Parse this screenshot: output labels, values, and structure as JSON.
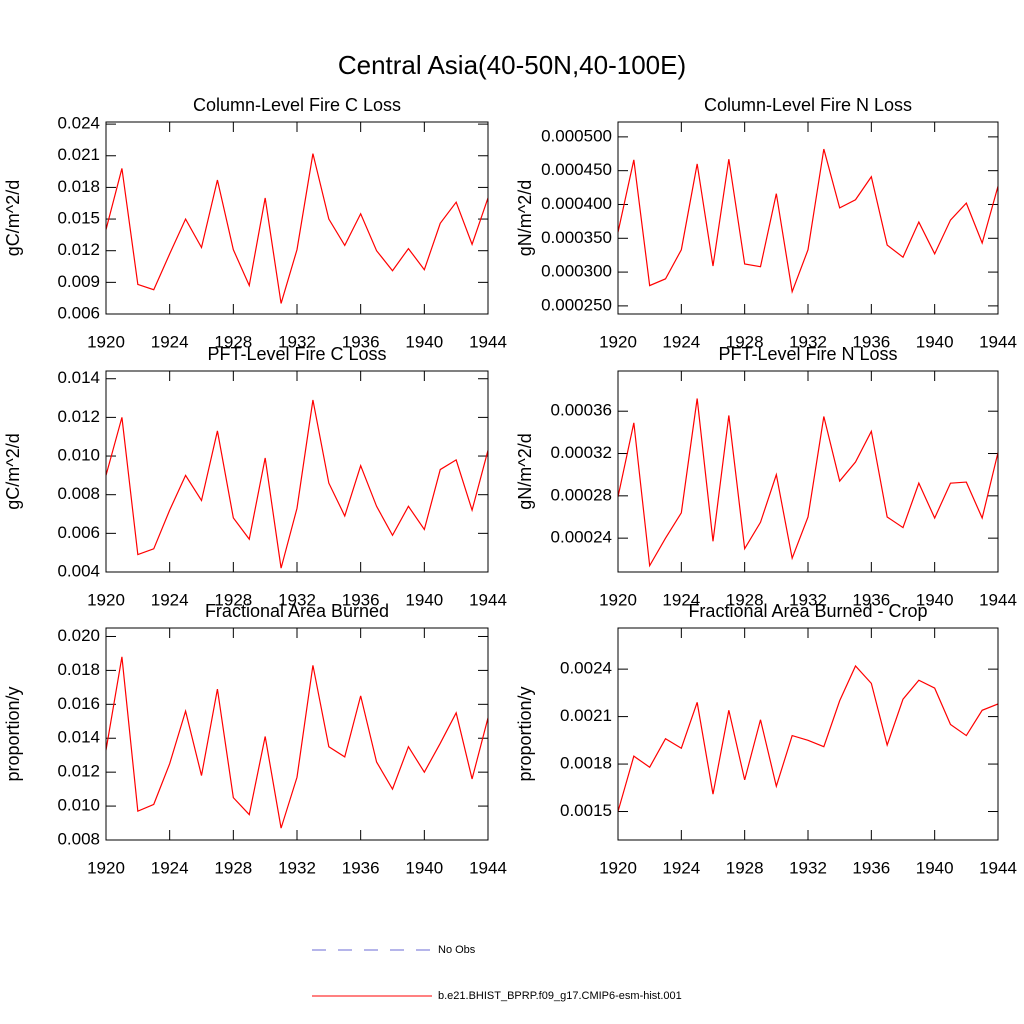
{
  "title": "Central Asia(40-50N,40-100E)",
  "chart_data": [
    {
      "type": "line",
      "title": "Column-Level Fire C Loss",
      "ylabel": "gC/m^2/d",
      "color": "#ff0000",
      "x": [
        1920,
        1921,
        1922,
        1923,
        1924,
        1925,
        1926,
        1927,
        1928,
        1929,
        1930,
        1931,
        1932,
        1933,
        1934,
        1935,
        1936,
        1937,
        1938,
        1939,
        1940,
        1941,
        1942,
        1943,
        1944
      ],
      "values": [
        0.014,
        0.0198,
        0.0088,
        0.0083,
        0.0117,
        0.015,
        0.0123,
        0.0187,
        0.0121,
        0.0087,
        0.017,
        0.007,
        0.0121,
        0.0212,
        0.015,
        0.0125,
        0.0155,
        0.012,
        0.0101,
        0.0122,
        0.0102,
        0.0146,
        0.0166,
        0.0126,
        0.017
      ],
      "xlim": [
        1920,
        1944
      ],
      "xticks": [
        1920,
        1924,
        1928,
        1932,
        1936,
        1940,
        1944
      ],
      "ylim": [
        0.006,
        0.0242
      ],
      "yticks": [
        0.006,
        0.009,
        0.012,
        0.015,
        0.018,
        0.021,
        0.024
      ]
    },
    {
      "type": "line",
      "title": "Column-Level Fire N Loss",
      "ylabel": "gN/m^2/d",
      "color": "#ff0000",
      "x": [
        1920,
        1921,
        1922,
        1923,
        1924,
        1925,
        1926,
        1927,
        1928,
        1929,
        1930,
        1931,
        1932,
        1933,
        1934,
        1935,
        1936,
        1937,
        1938,
        1939,
        1940,
        1941,
        1942,
        1943,
        1944
      ],
      "values": [
        0.000359,
        0.000466,
        0.00028,
        0.00029,
        0.000333,
        0.00046,
        0.000309,
        0.000467,
        0.000312,
        0.000308,
        0.000416,
        0.000271,
        0.000333,
        0.000482,
        0.000395,
        0.000407,
        0.000441,
        0.00034,
        0.000322,
        0.000374,
        0.000327,
        0.000377,
        0.000402,
        0.000343,
        0.000427
      ],
      "xlim": [
        1920,
        1944
      ],
      "xticks": [
        1920,
        1924,
        1928,
        1932,
        1936,
        1940,
        1944
      ],
      "ylim": [
        0.000238,
        0.000522
      ],
      "yticks": [
        {
          "value": 0.00025,
          "label": "0.000250"
        },
        {
          "value": 0.0003,
          "label": "0.000300"
        },
        {
          "value": 0.00035,
          "label": "0.000350"
        },
        {
          "value": 0.0004,
          "label": "0.000400"
        },
        {
          "value": 0.00045,
          "label": "0.000450"
        },
        {
          "value": 0.0005,
          "label": "0.000500"
        }
      ]
    },
    {
      "type": "line",
      "title": "PFT-Level Fire C Loss",
      "ylabel": "gC/m^2/d",
      "color": "#ff0000",
      "x": [
        1920,
        1921,
        1922,
        1923,
        1924,
        1925,
        1926,
        1927,
        1928,
        1929,
        1930,
        1931,
        1932,
        1933,
        1934,
        1935,
        1936,
        1937,
        1938,
        1939,
        1940,
        1941,
        1942,
        1943,
        1944
      ],
      "values": [
        0.009,
        0.012,
        0.0049,
        0.0052,
        0.0072,
        0.009,
        0.0077,
        0.0113,
        0.0068,
        0.0057,
        0.0099,
        0.0042,
        0.0073,
        0.0129,
        0.0086,
        0.0069,
        0.0095,
        0.0074,
        0.0059,
        0.0074,
        0.0062,
        0.0093,
        0.0098,
        0.0072,
        0.0103
      ],
      "xlim": [
        1920,
        1944
      ],
      "xticks": [
        1920,
        1924,
        1928,
        1932,
        1936,
        1940,
        1944
      ],
      "ylim": [
        0.004,
        0.0144
      ],
      "yticks": [
        0.004,
        0.006,
        0.008,
        {
          "value": 0.01,
          "label": "0.010"
        },
        0.012,
        0.014
      ]
    },
    {
      "type": "line",
      "title": "PFT-Level Fire N Loss",
      "ylabel": "gN/m^2/d",
      "color": "#ff0000",
      "x": [
        1920,
        1921,
        1922,
        1923,
        1924,
        1925,
        1926,
        1927,
        1928,
        1929,
        1930,
        1931,
        1932,
        1933,
        1934,
        1935,
        1936,
        1937,
        1938,
        1939,
        1940,
        1941,
        1942,
        1943,
        1944
      ],
      "values": [
        0.000279,
        0.000349,
        0.000214,
        0.00024,
        0.000264,
        0.000372,
        0.000237,
        0.000356,
        0.00023,
        0.000255,
        0.0003,
        0.000221,
        0.00026,
        0.000355,
        0.000294,
        0.000312,
        0.000341,
        0.00026,
        0.00025,
        0.000292,
        0.000259,
        0.000292,
        0.000293,
        0.000259,
        0.000321
      ],
      "xlim": [
        1920,
        1944
      ],
      "xticks": [
        1920,
        1924,
        1928,
        1932,
        1936,
        1940,
        1944
      ],
      "ylim": [
        0.000208,
        0.000398
      ],
      "yticks": [
        0.00024,
        0.00028,
        0.00032,
        0.00036
      ]
    },
    {
      "type": "line",
      "title": "Fractional Area Burned",
      "ylabel": "proportion/y",
      "color": "#ff0000",
      "x": [
        1920,
        1921,
        1922,
        1923,
        1924,
        1925,
        1926,
        1927,
        1928,
        1929,
        1930,
        1931,
        1932,
        1933,
        1934,
        1935,
        1936,
        1937,
        1938,
        1939,
        1940,
        1941,
        1942,
        1943,
        1944
      ],
      "values": [
        0.0133,
        0.0188,
        0.0097,
        0.0101,
        0.0125,
        0.0156,
        0.0118,
        0.0169,
        0.0105,
        0.0095,
        0.0141,
        0.0087,
        0.0117,
        0.0183,
        0.0135,
        0.0129,
        0.0165,
        0.0126,
        0.011,
        0.0135,
        0.012,
        0.0137,
        0.0155,
        0.0116,
        0.0152
      ],
      "xlim": [
        1920,
        1944
      ],
      "xticks": [
        1920,
        1924,
        1928,
        1932,
        1936,
        1940,
        1944
      ],
      "ylim": [
        0.008,
        0.0205
      ],
      "yticks": [
        0.008,
        {
          "value": 0.01,
          "label": "0.010"
        },
        0.012,
        0.014,
        0.016,
        0.018,
        {
          "value": 0.02,
          "label": "0.020"
        }
      ]
    },
    {
      "type": "line",
      "title": "Fractional Area Burned - Crop",
      "ylabel": "proportion/y",
      "color": "#ff0000",
      "x": [
        1920,
        1921,
        1922,
        1923,
        1924,
        1925,
        1926,
        1927,
        1928,
        1929,
        1930,
        1931,
        1932,
        1933,
        1934,
        1935,
        1936,
        1937,
        1938,
        1939,
        1940,
        1941,
        1942,
        1943,
        1944
      ],
      "values": [
        0.0015,
        0.00185,
        0.00178,
        0.00196,
        0.0019,
        0.00219,
        0.00161,
        0.00214,
        0.0017,
        0.00208,
        0.00166,
        0.00198,
        0.00195,
        0.00191,
        0.0022,
        0.00242,
        0.00231,
        0.00192,
        0.00221,
        0.00233,
        0.00228,
        0.00205,
        0.00198,
        0.00214,
        0.00218
      ],
      "xlim": [
        1920,
        1944
      ],
      "xticks": [
        1920,
        1924,
        1928,
        1932,
        1936,
        1940,
        1944
      ],
      "ylim": [
        0.00132,
        0.00266
      ],
      "yticks": [
        0.0015,
        0.0018,
        0.0021,
        0.0024
      ]
    }
  ],
  "legend": [
    {
      "name": "No Obs",
      "color": "#6b6bd6",
      "dash": true
    },
    {
      "name": "b.e21.BHIST_BPRP.f09_g17.CMIP6-esm-hist.001",
      "color": "#ff0000",
      "dash": false
    }
  ]
}
